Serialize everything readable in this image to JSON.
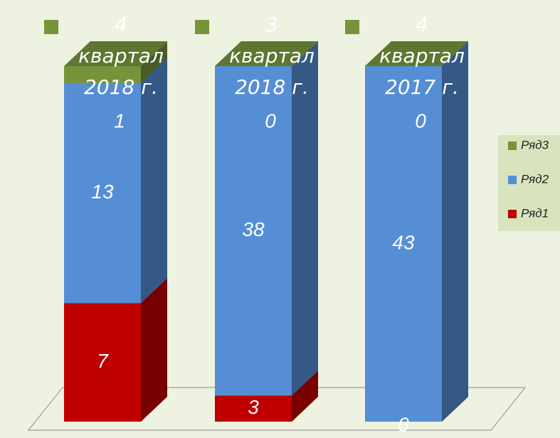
{
  "chart_data": {
    "type": "bar",
    "stacked": "percent",
    "categories": [
      "4 квартал 2018 г.",
      "3 квартал 2018 г.",
      "4 квартал 2017 г."
    ],
    "series": [
      {
        "name": "Ряд1",
        "color": "#c00000",
        "values": [
          7,
          3,
          0
        ]
      },
      {
        "name": "Ряд2",
        "color": "#558ed5",
        "values": [
          13,
          38,
          43
        ]
      },
      {
        "name": "Ряд3",
        "color": "#77933c",
        "values": [
          1,
          0,
          0
        ]
      }
    ],
    "legend": "right"
  }
}
